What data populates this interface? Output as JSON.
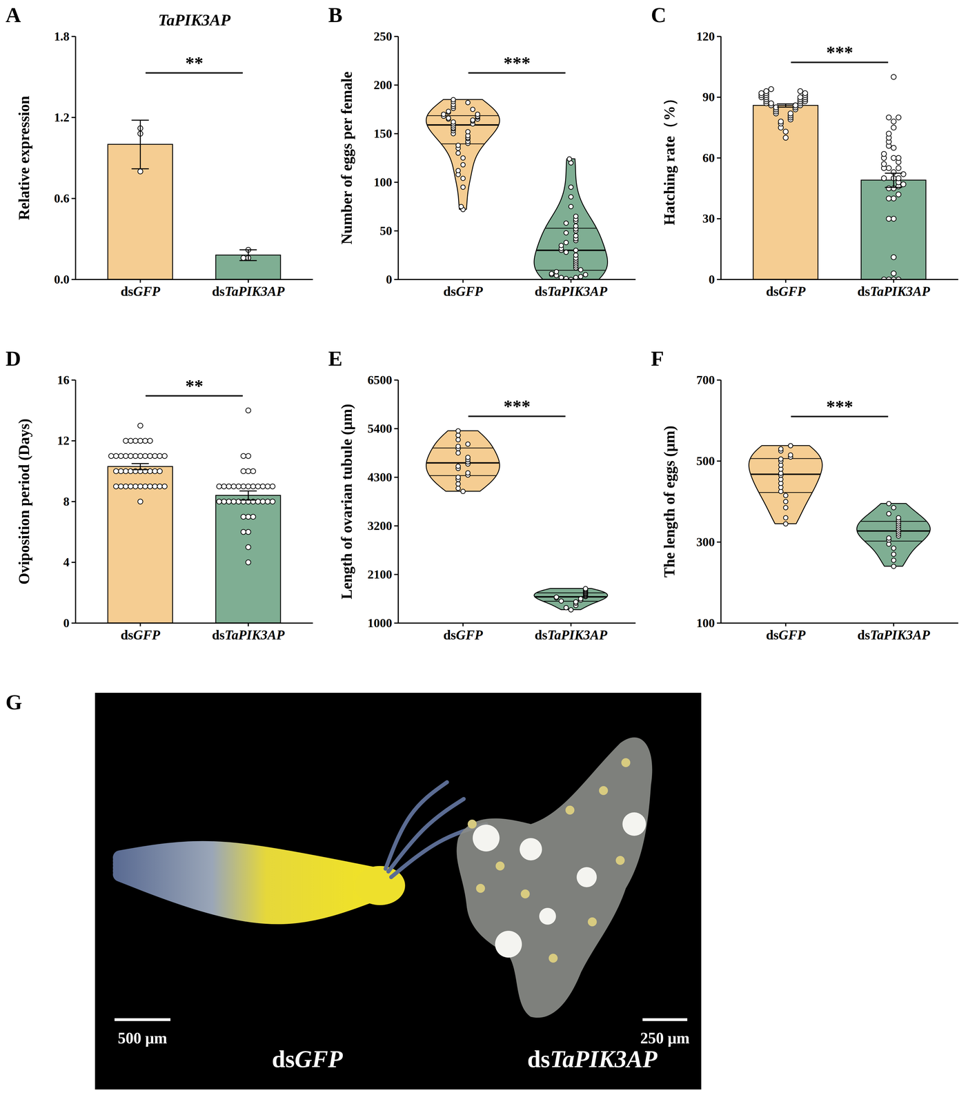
{
  "chart_data": [
    {
      "panel": "A",
      "type": "bar",
      "title": "TaPIK3AP",
      "categories": [
        "dsGFP",
        "dsTaPIK3AP"
      ],
      "colors": [
        "#F5CD92",
        "#7FAE93"
      ],
      "values": [
        1.0,
        0.18
      ],
      "errors": [
        0.18,
        0.04
      ],
      "points": [
        [
          1.12,
          1.08,
          0.8
        ],
        [
          0.22,
          0.16,
          0.16
        ]
      ],
      "ylabel": "Relative expression",
      "ylim": [
        0,
        1.8
      ],
      "yticks": [
        {
          "value": 0,
          "label": "0.0"
        },
        0.6,
        1.2,
        1.8
      ],
      "annotations": [
        "**"
      ]
    },
    {
      "panel": "B",
      "type": "violin",
      "categories": [
        "dsGFP",
        "dsTaPIK3AP"
      ],
      "colors": [
        "#F5CD92",
        "#7FAE93"
      ],
      "points": [
        [
          72,
          75,
          95,
          104,
          108,
          112,
          118,
          125,
          130,
          135,
          138,
          140,
          142,
          145,
          146,
          148,
          150,
          152,
          153,
          155,
          156,
          158,
          160,
          160,
          162,
          163,
          164,
          165,
          165,
          166,
          167,
          168,
          168,
          170,
          170,
          172,
          173,
          175,
          176,
          178,
          180,
          182,
          183,
          185
        ],
        [
          0,
          1,
          2,
          2,
          3,
          4,
          5,
          5,
          6,
          8,
          10,
          12,
          14,
          16,
          18,
          20,
          22,
          25,
          28,
          30,
          30,
          32,
          35,
          38,
          40,
          42,
          45,
          48,
          50,
          52,
          55,
          58,
          60,
          62,
          65,
          75,
          85,
          95,
          120,
          124
        ]
      ],
      "ylabel": "Number of eggs per female",
      "ylim": [
        0,
        250
      ],
      "yticks": [
        0,
        50,
        100,
        150,
        200,
        250
      ],
      "annotations": [
        "***"
      ]
    },
    {
      "panel": "C",
      "type": "bar",
      "categories": [
        "dsGFP",
        "dsTaPIK3AP"
      ],
      "colors": [
        "#F5CD92",
        "#7FAE93"
      ],
      "values": [
        85.9,
        49.0
      ],
      "errors": [
        0.8,
        3.5
      ],
      "points": [
        [
          70,
          73,
          75,
          77,
          78,
          79,
          80,
          81,
          82,
          82,
          83,
          84,
          84,
          85,
          85,
          86,
          86,
          86,
          87,
          87,
          87,
          88,
          88,
          88,
          89,
          89,
          89,
          90,
          90,
          90,
          90,
          91,
          91,
          91,
          92,
          92,
          92,
          93,
          93,
          94
        ],
        [
          0,
          0,
          0,
          0,
          3,
          11,
          30,
          40,
          45,
          50,
          30,
          53,
          55,
          60,
          40,
          42,
          45,
          46,
          48,
          50,
          50,
          52,
          55,
          55,
          57,
          58,
          60,
          60,
          62,
          65,
          66,
          68,
          70,
          72,
          75,
          78,
          80,
          80,
          100,
          47
        ]
      ],
      "ylabel": "Hatching rate（%）",
      "ylim": [
        0,
        120
      ],
      "yticks": [
        0,
        30,
        60,
        90,
        120
      ],
      "annotations": [
        "***"
      ]
    },
    {
      "panel": "D",
      "type": "bar",
      "categories": [
        "dsGFP",
        "dsTaPIK3AP"
      ],
      "colors": [
        "#F5CD92",
        "#7FAE93"
      ],
      "values": [
        10.3,
        8.4
      ],
      "errors": [
        0.2,
        0.3
      ],
      "points": [
        [
          8,
          9,
          9,
          9,
          9,
          9,
          9,
          9,
          9,
          9,
          9,
          9,
          10,
          10,
          10,
          10,
          10,
          10,
          10,
          10,
          10,
          10,
          11,
          11,
          11,
          11,
          11,
          11,
          11,
          11,
          11,
          11,
          11,
          11,
          12,
          12,
          12,
          12,
          12,
          12,
          13
        ],
        [
          4,
          5,
          6,
          6,
          7,
          7,
          7,
          8,
          8,
          8,
          8,
          8,
          8,
          8,
          8,
          8,
          8,
          8,
          8,
          9,
          9,
          9,
          9,
          9,
          9,
          9,
          9,
          9,
          9,
          9,
          9,
          10,
          10,
          10,
          11,
          11,
          14
        ]
      ],
      "ylabel": "Oviposition period (Days)",
      "ylim": [
        0,
        16
      ],
      "yticks": [
        0,
        4,
        8,
        12,
        16
      ],
      "annotations": [
        "**"
      ]
    },
    {
      "panel": "E",
      "type": "violin",
      "categories": [
        "dsGFP",
        "dsTaPIK3AP"
      ],
      "colors": [
        "#F5CD92",
        "#7FAE93"
      ],
      "points": [
        [
          3980,
          4050,
          4150,
          4250,
          4300,
          4350,
          4400,
          4500,
          4550,
          4600,
          4650,
          4700,
          4750,
          4850,
          4950,
          5000,
          5050,
          5150,
          5250,
          5350
        ],
        [
          1300,
          1350,
          1400,
          1450,
          1480,
          1500,
          1520,
          1550,
          1570,
          1590,
          1600,
          1620,
          1640,
          1660,
          1680,
          1700,
          1720,
          1740,
          1760,
          1780
        ]
      ],
      "ylabel": "Length of ovarian tubule (μm)",
      "ylim": [
        1000,
        6500
      ],
      "yticks": [
        1000,
        2100,
        3200,
        4300,
        5400,
        6500
      ],
      "annotations": [
        "***"
      ]
    },
    {
      "panel": "F",
      "type": "violin",
      "categories": [
        "dsGFP",
        "dsTaPIK3AP"
      ],
      "colors": [
        "#F5CD92",
        "#7FAE93"
      ],
      "points": [
        [
          345,
          360,
          385,
          400,
          415,
          425,
          435,
          445,
          455,
          465,
          470,
          480,
          490,
          500,
          505,
          510,
          515,
          525,
          530,
          538
        ],
        [
          240,
          255,
          270,
          285,
          295,
          305,
          310,
          315,
          320,
          325,
          330,
          335,
          340,
          345,
          350,
          355,
          360,
          370,
          385,
          395
        ]
      ],
      "ylabel": "The length of eggs (μm)",
      "ylim": [
        100,
        700
      ],
      "yticks": [
        100,
        300,
        500,
        700
      ],
      "annotations": [
        "***"
      ]
    }
  ],
  "image": {
    "panel": "G",
    "labels": [
      "dsGFP",
      "dsTaPIK3AP"
    ],
    "scale_bars": [
      "500 μm",
      "250 μm"
    ]
  }
}
